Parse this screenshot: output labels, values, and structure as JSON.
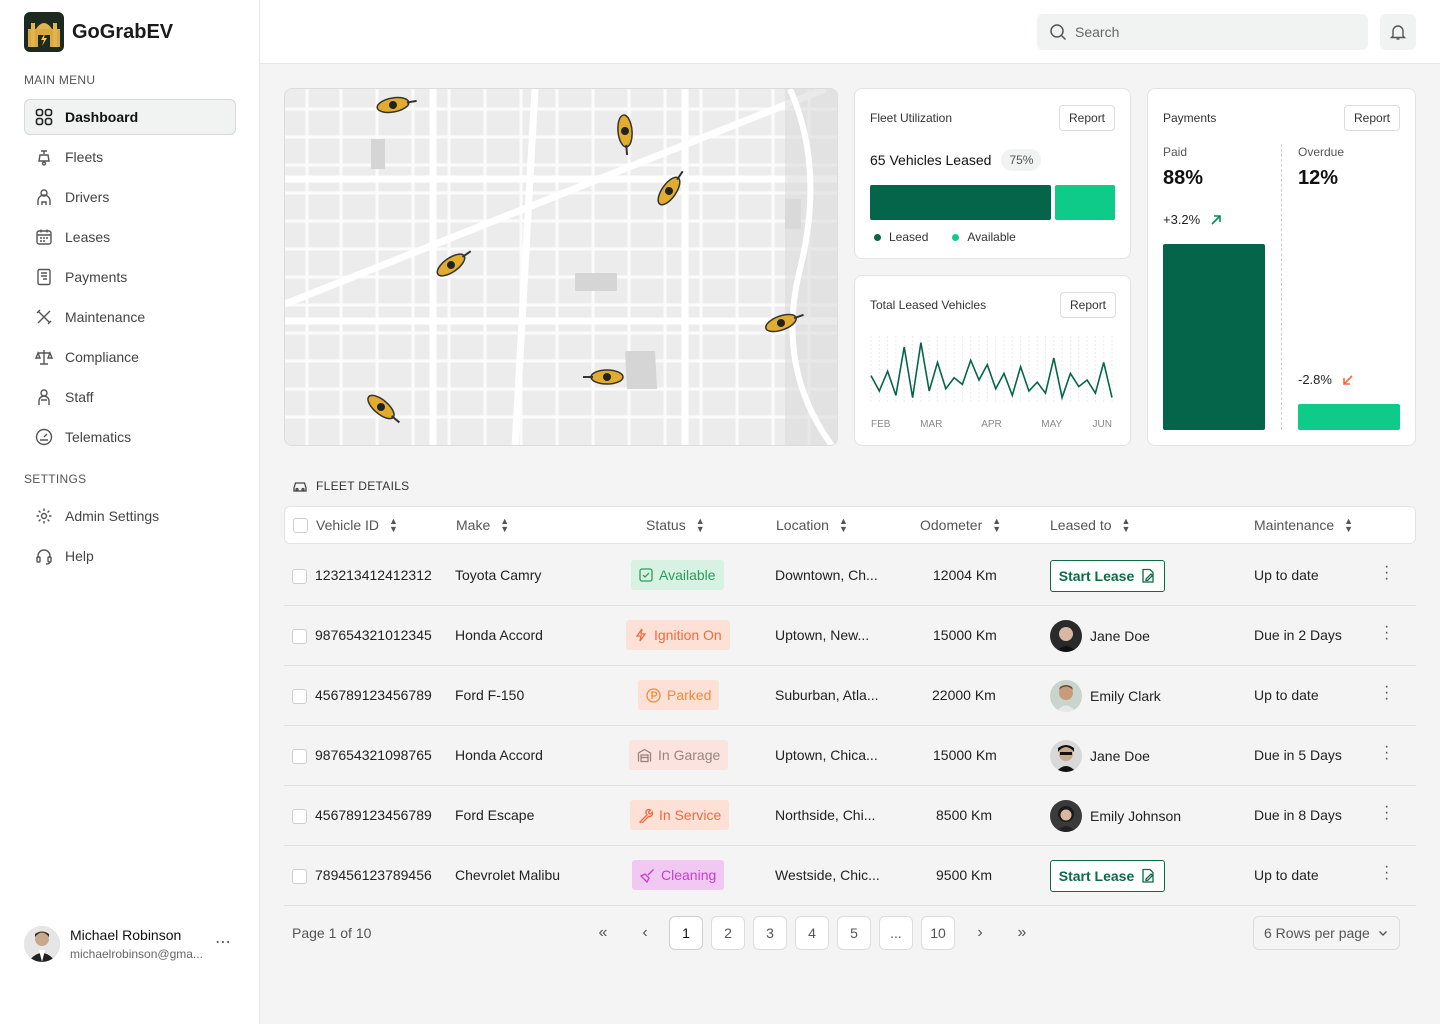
{
  "brand": {
    "name": "GoGrabEV"
  },
  "sidebar": {
    "main_menu_label": "MAIN MENU",
    "items": [
      {
        "label": "Dashboard",
        "icon": "dashboard-grid-icon"
      },
      {
        "label": "Fleets",
        "icon": "scooter-icon"
      },
      {
        "label": "Drivers",
        "icon": "driver-icon"
      },
      {
        "label": "Leases",
        "icon": "calendar-icon"
      },
      {
        "label": "Payments",
        "icon": "receipt-icon"
      },
      {
        "label": "Maintenance",
        "icon": "tools-icon"
      },
      {
        "label": "Compliance",
        "icon": "scale-icon"
      },
      {
        "label": "Staff",
        "icon": "staff-icon"
      },
      {
        "label": "Telematics",
        "icon": "gauge-icon"
      }
    ],
    "settings_label": "SETTINGS",
    "settings_items": [
      {
        "label": "Admin Settings",
        "icon": "gear-icon"
      },
      {
        "label": "Help",
        "icon": "headset-icon"
      }
    ],
    "user": {
      "name": "Michael Robinson",
      "email": "michaelrobinson@gma..."
    }
  },
  "header": {
    "search_placeholder": "Search"
  },
  "fleet_utilization": {
    "title": "Fleet Utilization",
    "report_label": "Report",
    "summary": "65 Vehicles Leased",
    "percent": "75%",
    "leased_fraction": 0.75,
    "legend_leased": "Leased",
    "legend_available": "Available",
    "colors": {
      "leased": "#05654a",
      "available": "#0fcb89"
    }
  },
  "total_leased": {
    "title": "Total Leased Vehicles",
    "report_label": "Report",
    "chart_data": {
      "type": "line",
      "x_labels": [
        "FEB",
        "MAR",
        "APR",
        "MAY",
        "JUN"
      ],
      "values": [
        12,
        5,
        14,
        3,
        25,
        2,
        27,
        5,
        18,
        6,
        11,
        8,
        19,
        10,
        17,
        6,
        13,
        3,
        16,
        5,
        9,
        4,
        20,
        2,
        13,
        7,
        10,
        4,
        18,
        2
      ],
      "ylim": [
        0,
        30
      ],
      "color": "#05654a"
    }
  },
  "payments": {
    "title": "Payments",
    "report_label": "Report",
    "paid_label": "Paid",
    "paid_value": "88%",
    "paid_change": "+3.2%",
    "overdue_label": "Overdue",
    "overdue_value": "12%",
    "overdue_change": "-2.8%",
    "chart_data": {
      "type": "bar",
      "categories": [
        "Paid",
        "Overdue"
      ],
      "values": [
        88,
        12
      ],
      "ylim": [
        0,
        88
      ],
      "colors": [
        "#05654a",
        "#0fcb89"
      ]
    }
  },
  "fleet_details": {
    "label": "FLEET DETAILS",
    "columns": [
      "Vehicle ID",
      "Make",
      "Status",
      "Location",
      "Odometer",
      "Leased to",
      "Maintenance"
    ],
    "rows": [
      {
        "id": "12321341241231 2",
        "make": "Toyota Camry",
        "status": "Available",
        "status_type": "available",
        "location": "Downtown, Ch...",
        "odometer": "12004 Km",
        "leased_to": null,
        "lease_action": "Start Lease",
        "maintenance": "Up to date"
      },
      {
        "id": "987654321012345",
        "make": "Honda Accord",
        "status": "Ignition On",
        "status_type": "ignition",
        "location": "Uptown, New...",
        "odometer": "15000 Km",
        "leased_to": "Jane Doe",
        "maintenance": "Due in 2 Days"
      },
      {
        "id": "456789123456789",
        "make": "Ford F-150",
        "status": "Parked",
        "status_type": "parked",
        "location": "Suburban, Atla...",
        "odometer": "22000 Km",
        "leased_to": "Emily Clark",
        "maintenance": "Up to date"
      },
      {
        "id": "987654321098765",
        "make": "Honda Accord",
        "status": "In Garage",
        "status_type": "garage",
        "location": "Uptown, Chica...",
        "odometer": "15000 Km",
        "leased_to": "Jane Doe",
        "maintenance": "Due in 5 Days"
      },
      {
        "id": "456789123456789",
        "make": "Ford Escape",
        "status": "In Service",
        "status_type": "service",
        "location": "Northside, Chi...",
        "odometer": "8500 Km",
        "leased_to": "Emily Johnson",
        "maintenance": "Due in 8 Days"
      },
      {
        "id": "789456123789456",
        "make": "Chevrolet Malibu",
        "status": "Cleaning",
        "status_type": "cleaning",
        "location": "Westside, Chic...",
        "odometer": "9500 Km",
        "leased_to": null,
        "lease_action": "Start Lease",
        "maintenance": "Up to date"
      }
    ]
  },
  "pagination": {
    "page_info": "Page 1 of 10",
    "pages": [
      "1",
      "2",
      "3",
      "4",
      "5",
      "...",
      "10"
    ],
    "current": "1",
    "rows_per_page": "6 Rows per page"
  }
}
